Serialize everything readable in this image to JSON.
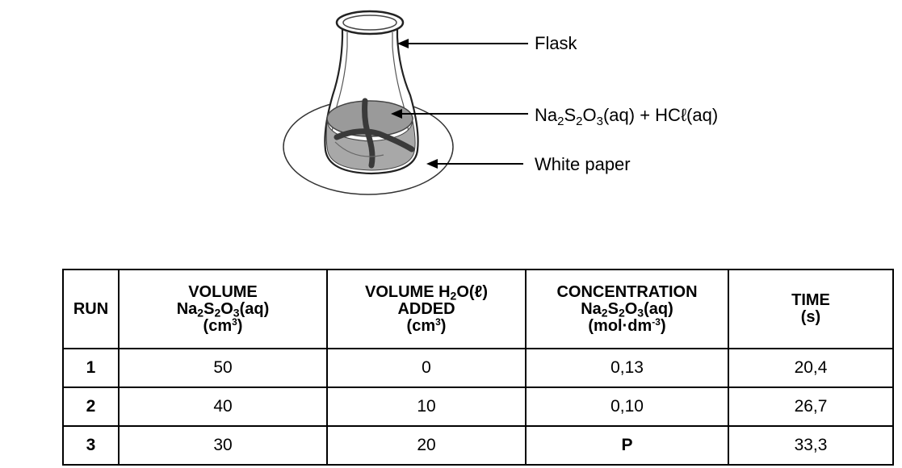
{
  "labels": {
    "flask": "Flask",
    "solution": [
      "Na",
      "2",
      "S",
      "2",
      "O",
      "3",
      "(aq) + HCℓ(aq)"
    ],
    "paper": "White paper"
  },
  "table": {
    "headers": [
      {
        "lines": [
          "RUN"
        ]
      },
      {
        "lines": [
          "VOLUME",
          [
            "Na",
            "2",
            "S",
            "2",
            "O",
            "3",
            "(aq)"
          ],
          [
            "(cm",
            "3",
            ")"
          ]
        ]
      },
      {
        "lines": [
          [
            "VOLUME H",
            "2",
            "O(ℓ)"
          ],
          "ADDED",
          [
            "(cm",
            "3",
            ")"
          ]
        ]
      },
      {
        "lines": [
          "CONCENTRATION",
          [
            "Na",
            "2",
            "S",
            "2",
            "O",
            "3",
            "(aq)"
          ],
          [
            "(mol·dm",
            "-3",
            ")"
          ]
        ]
      },
      {
        "lines": [
          "TIME",
          "(s)"
        ]
      }
    ],
    "rows": [
      {
        "run": "1",
        "volume": "50",
        "water": "0",
        "concentration": "0,13",
        "time": "20,4"
      },
      {
        "run": "2",
        "volume": "40",
        "water": "10",
        "concentration": "0,10",
        "time": "26,7"
      },
      {
        "run": "3",
        "volume": "30",
        "water": "20",
        "concentration": "P",
        "time": "33,3"
      }
    ]
  }
}
